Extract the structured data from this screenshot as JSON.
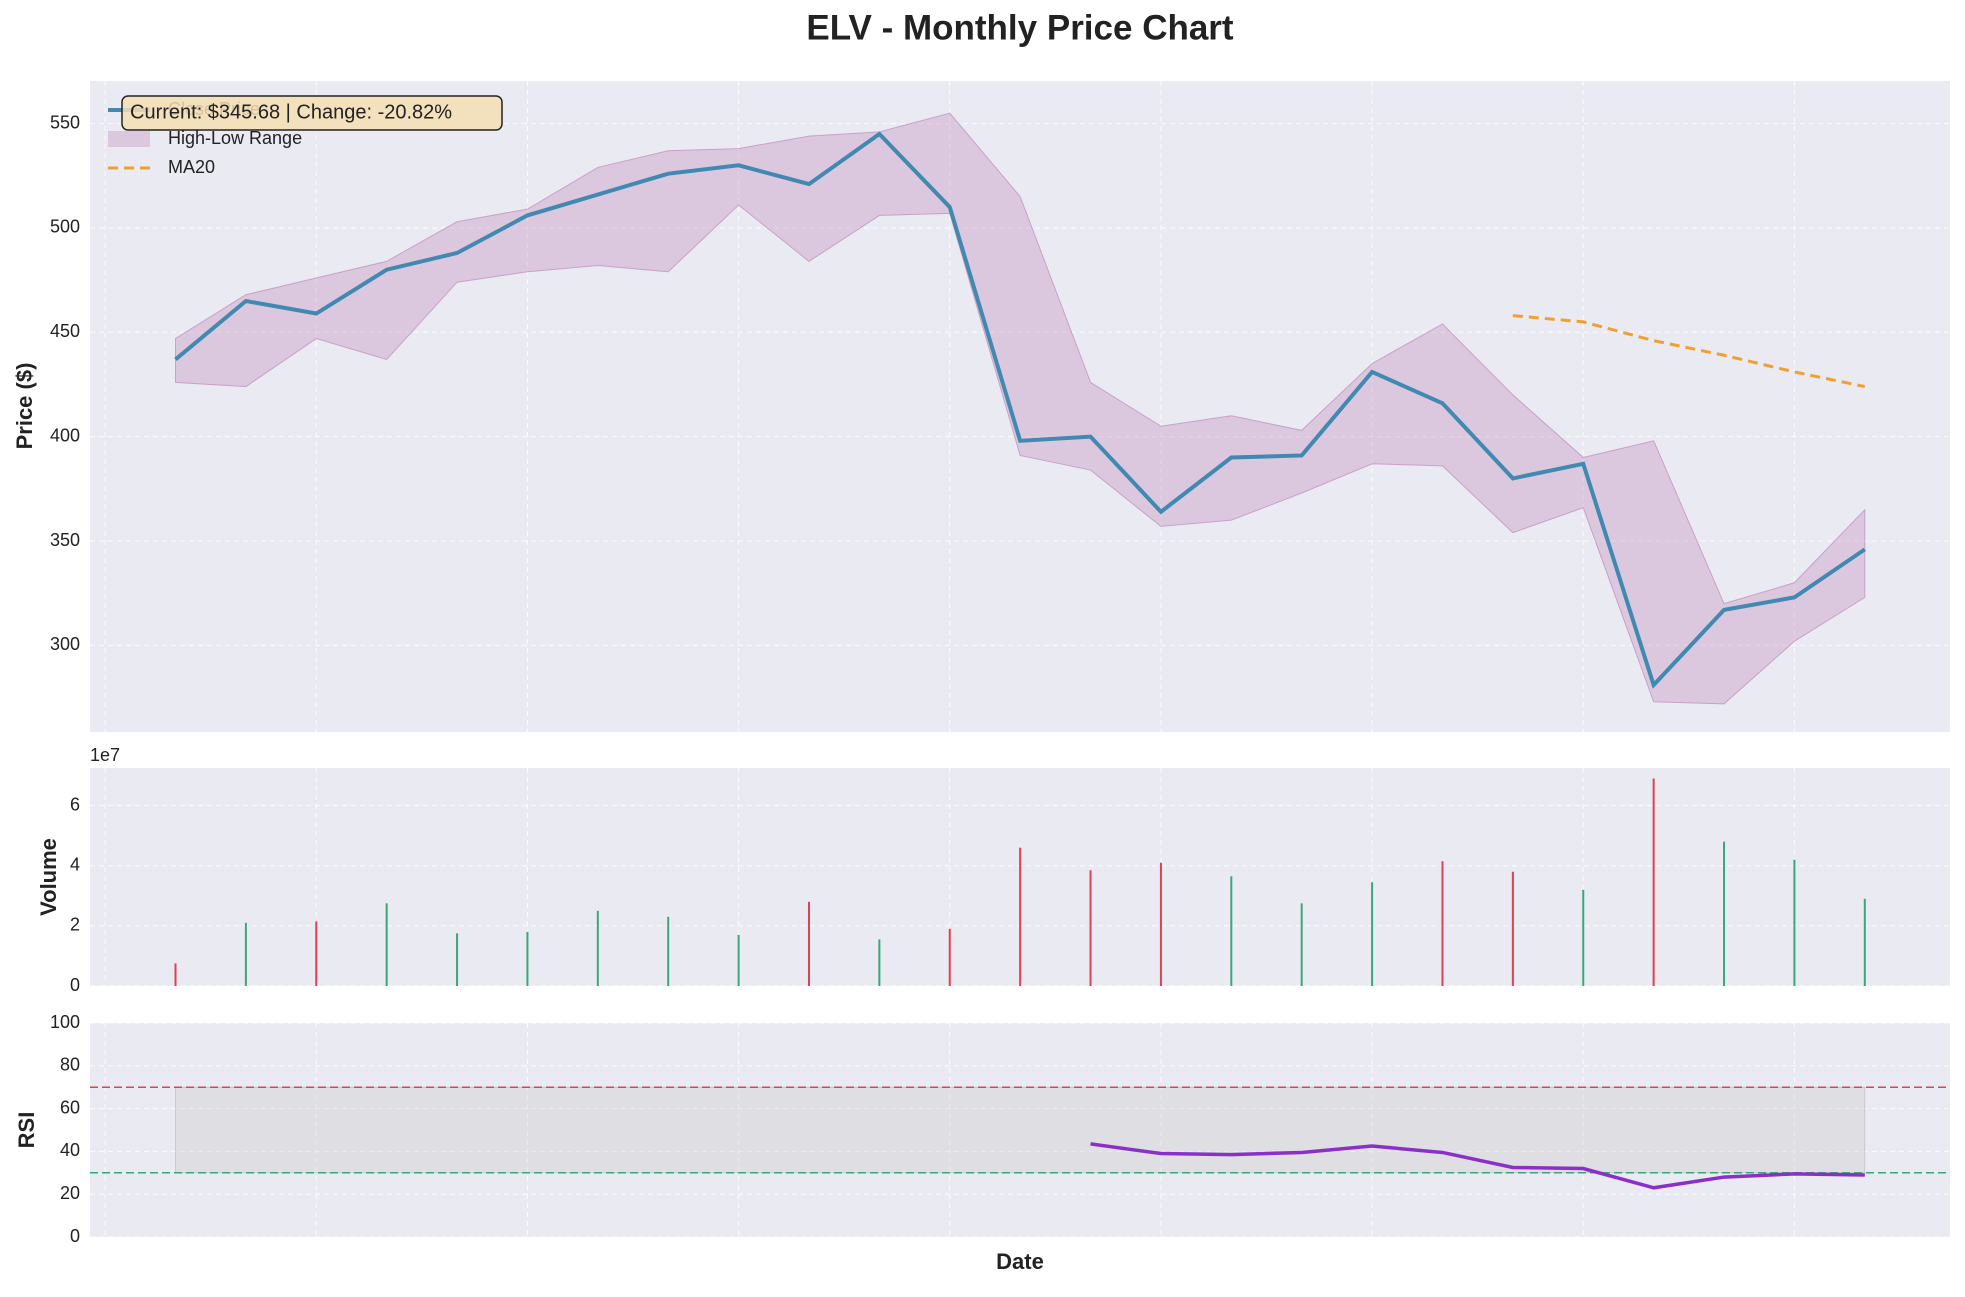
{
  "chart_data": [
    {
      "type": "line",
      "title": "ELV - Monthly Price Chart",
      "ylabel": "Price ($)",
      "annotation": "Current: $345.68 | Change: -20.82%",
      "series": [
        {
          "name": "Close Price",
          "color": "#4189b0",
          "values": [
            437,
            465,
            459,
            480,
            488,
            506,
            516,
            526,
            530,
            521,
            545,
            510,
            398,
            400,
            364,
            390,
            391,
            431,
            416,
            380,
            387,
            281,
            317,
            323,
            346
          ]
        },
        {
          "name": "MA20",
          "color": "#f0a030",
          "dashed": true,
          "values": [
            null,
            null,
            null,
            null,
            null,
            null,
            null,
            null,
            null,
            null,
            null,
            null,
            null,
            null,
            null,
            null,
            null,
            null,
            null,
            458,
            455,
            446,
            439,
            431,
            424
          ]
        }
      ],
      "range": {
        "name": "High-Low Range",
        "color": "#c9a0c8",
        "high": [
          447,
          468,
          476,
          484,
          503,
          509,
          529,
          537,
          538,
          544,
          546,
          555,
          515,
          426,
          405,
          410,
          403,
          435,
          454,
          420,
          390,
          398,
          320,
          330,
          365
        ],
        "low": [
          426,
          424,
          447,
          437,
          474,
          479,
          482,
          479,
          511,
          484,
          506,
          507,
          391,
          384,
          357,
          360,
          373,
          387,
          386,
          354,
          366,
          273,
          272,
          302,
          323
        ]
      },
      "ylim": [
        258.5,
        570.4
      ],
      "yticks": [
        300,
        350,
        400,
        450,
        500,
        550
      ],
      "grid": true,
      "legend": "upper-left"
    },
    {
      "type": "bar",
      "ylabel": "Volume",
      "offset_label": "1e7",
      "values": [
        0.75,
        2.1,
        2.15,
        2.75,
        1.75,
        1.8,
        2.5,
        2.3,
        1.7,
        2.8,
        1.55,
        1.9,
        4.6,
        3.85,
        4.1,
        3.65,
        2.75,
        3.45,
        4.15,
        3.8,
        3.2,
        6.9,
        4.8,
        4.2,
        2.9
      ],
      "colors": [
        "#e0404f",
        "#3aa876",
        "#e0404f",
        "#3aa876",
        "#3aa876",
        "#3aa876",
        "#3aa876",
        "#3aa876",
        "#3aa876",
        "#e0404f",
        "#3aa876",
        "#e0404f",
        "#e0404f",
        "#e0404f",
        "#e0404f",
        "#3aa876",
        "#3aa876",
        "#3aa876",
        "#e0404f",
        "#e0404f",
        "#3aa876",
        "#e0404f",
        "#3aa876",
        "#3aa876",
        "#3aa876"
      ],
      "ylim": [
        0,
        7.25
      ],
      "yticks": [
        0,
        2,
        4,
        6
      ],
      "grid": true
    },
    {
      "type": "line",
      "ylabel": "RSI",
      "xlabel": "Date",
      "series": [
        {
          "color": "#8b2fc9",
          "values": [
            null,
            null,
            null,
            null,
            null,
            null,
            null,
            null,
            null,
            null,
            null,
            null,
            null,
            43.5,
            39,
            38.5,
            39.5,
            42.5,
            39.5,
            32.5,
            32,
            23,
            28,
            29.5,
            29
          ]
        }
      ],
      "band": [
        30,
        70
      ],
      "thresholds": [
        {
          "value": 70,
          "color": "#e0404f"
        },
        {
          "value": 30,
          "color": "#3aa876"
        }
      ],
      "ylim": [
        0,
        100
      ],
      "yticks": [
        0,
        20,
        40,
        60,
        80,
        100
      ],
      "grid": true
    }
  ]
}
